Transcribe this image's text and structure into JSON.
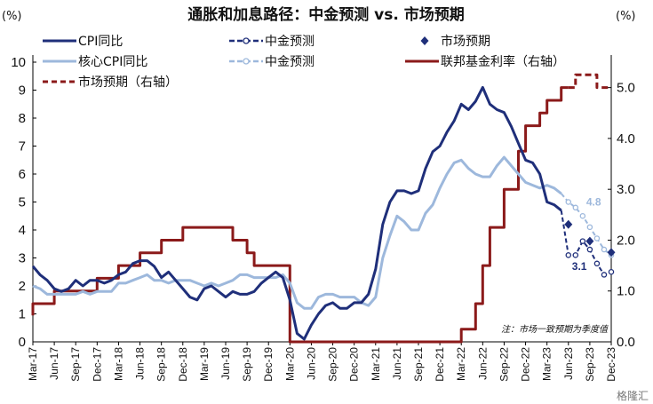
{
  "chart_data": {
    "type": "line",
    "title": "通胀和加息路径：中金预测 vs. 市场预期",
    "ylabel_left": "(%)",
    "ylabel_right": "(%)",
    "ylim_left": [
      0,
      10
    ],
    "ylim_right": [
      0,
      5.5
    ],
    "yticks_left": [
      "0",
      "1",
      "2",
      "3",
      "4",
      "5",
      "6",
      "7",
      "8",
      "9",
      "10"
    ],
    "yticks_right": [
      "0.0",
      "1.0",
      "2.0",
      "3.0",
      "4.0",
      "5.0"
    ],
    "x_start": "Mar-17",
    "x_end": "Dec-23",
    "xticks": [
      "Mar-17",
      "Jun-17",
      "Sep-17",
      "Dec-17",
      "Mar-18",
      "Jun-18",
      "Sep-18",
      "Dec-18",
      "Mar-19",
      "Jun-19",
      "Sep-19",
      "Dec-19",
      "Mar-20",
      "Jun-20",
      "Sep-20",
      "Dec-20",
      "Mar-21",
      "Jun-21",
      "Sep-21",
      "Dec-21",
      "Mar-22",
      "Jun-22",
      "Sep-22",
      "Dec-22",
      "Mar-23",
      "Jun-23",
      "Sep-23",
      "Dec-23"
    ],
    "legend": [
      {
        "label": "CPI同比",
        "color": "#1f2f7a",
        "style": "solid"
      },
      {
        "label": "中金预测",
        "color": "#1f2f7a",
        "style": "dashed-hollow"
      },
      {
        "label": "市场预期",
        "color": "#1f2f7a",
        "style": "diamond"
      },
      {
        "label": "核心CPI同比",
        "color": "#9db8dc",
        "style": "solid"
      },
      {
        "label": "中金预测",
        "color": "#9db8dc",
        "style": "dashed-hollow"
      },
      {
        "label": "联邦基金利率（右轴）",
        "color": "#8b1a1a",
        "style": "step"
      },
      {
        "label": "市场预期（右轴）",
        "color": "#8b1a1a",
        "style": "dashed"
      }
    ],
    "note": "注：市场一致预期为季度值",
    "annotations": [
      {
        "text": "4.8",
        "date": "Aug-23",
        "y": 5.0,
        "color": "#9db8dc"
      },
      {
        "text": "3.1",
        "date": "Jun-23",
        "y": 2.7,
        "color": "#1f2f7a"
      }
    ],
    "series": [
      {
        "name": "CPI同比",
        "color": "#1f2f7a",
        "points": [
          [
            "Mar-17",
            2.7
          ],
          [
            "Apr-17",
            2.4
          ],
          [
            "May-17",
            2.2
          ],
          [
            "Jun-17",
            1.9
          ],
          [
            "Jul-17",
            1.8
          ],
          [
            "Aug-17",
            1.9
          ],
          [
            "Sep-17",
            2.2
          ],
          [
            "Oct-17",
            2.0
          ],
          [
            "Nov-17",
            2.2
          ],
          [
            "Dec-17",
            2.2
          ],
          [
            "Jan-18",
            2.1
          ],
          [
            "Feb-18",
            2.2
          ],
          [
            "Mar-18",
            2.4
          ],
          [
            "Apr-18",
            2.5
          ],
          [
            "May-18",
            2.8
          ],
          [
            "Jun-18",
            2.9
          ],
          [
            "Jul-18",
            2.9
          ],
          [
            "Aug-18",
            2.7
          ],
          [
            "Sep-18",
            2.3
          ],
          [
            "Oct-18",
            2.5
          ],
          [
            "Nov-18",
            2.2
          ],
          [
            "Dec-18",
            1.9
          ],
          [
            "Jan-19",
            1.6
          ],
          [
            "Feb-19",
            1.5
          ],
          [
            "Mar-19",
            1.9
          ],
          [
            "Apr-19",
            2.0
          ],
          [
            "May-19",
            1.8
          ],
          [
            "Jun-19",
            1.6
          ],
          [
            "Jul-19",
            1.8
          ],
          [
            "Aug-19",
            1.7
          ],
          [
            "Sep-19",
            1.7
          ],
          [
            "Oct-19",
            1.8
          ],
          [
            "Nov-19",
            2.1
          ],
          [
            "Dec-19",
            2.3
          ],
          [
            "Jan-20",
            2.5
          ],
          [
            "Feb-20",
            2.3
          ],
          [
            "Mar-20",
            1.5
          ],
          [
            "Apr-20",
            0.3
          ],
          [
            "May-20",
            0.1
          ],
          [
            "Jun-20",
            0.6
          ],
          [
            "Jul-20",
            1.0
          ],
          [
            "Aug-20",
            1.3
          ],
          [
            "Sep-20",
            1.4
          ],
          [
            "Oct-20",
            1.2
          ],
          [
            "Nov-20",
            1.2
          ],
          [
            "Dec-20",
            1.4
          ],
          [
            "Jan-21",
            1.4
          ],
          [
            "Feb-21",
            1.7
          ],
          [
            "Mar-21",
            2.6
          ],
          [
            "Apr-21",
            4.2
          ],
          [
            "May-21",
            5.0
          ],
          [
            "Jun-21",
            5.4
          ],
          [
            "Jul-21",
            5.4
          ],
          [
            "Aug-21",
            5.3
          ],
          [
            "Sep-21",
            5.4
          ],
          [
            "Oct-21",
            6.2
          ],
          [
            "Nov-21",
            6.8
          ],
          [
            "Dec-21",
            7.0
          ],
          [
            "Jan-22",
            7.5
          ],
          [
            "Feb-22",
            7.9
          ],
          [
            "Mar-22",
            8.5
          ],
          [
            "Apr-22",
            8.3
          ],
          [
            "May-22",
            8.6
          ],
          [
            "Jun-22",
            9.1
          ],
          [
            "Jul-22",
            8.5
          ],
          [
            "Aug-22",
            8.3
          ],
          [
            "Sep-22",
            8.2
          ],
          [
            "Oct-22",
            7.7
          ],
          [
            "Nov-22",
            7.1
          ],
          [
            "Dec-22",
            6.5
          ],
          [
            "Jan-23",
            6.4
          ],
          [
            "Feb-23",
            6.0
          ],
          [
            "Mar-23",
            5.0
          ],
          [
            "Apr-23",
            4.9
          ],
          [
            "May-23",
            4.7
          ]
        ]
      },
      {
        "name": "中金预测",
        "color": "#1f2f7a",
        "points": [
          [
            "May-23",
            4.7
          ],
          [
            "Jun-23",
            3.1
          ],
          [
            "Jul-23",
            3.1
          ],
          [
            "Aug-23",
            3.6
          ],
          [
            "Sep-23",
            3.3
          ],
          [
            "Oct-23",
            2.8
          ],
          [
            "Nov-23",
            2.4
          ],
          [
            "Dec-23",
            2.5
          ]
        ]
      },
      {
        "name": "市场预期",
        "color": "#1f2f7a",
        "points": [
          [
            "Jun-23",
            4.2
          ],
          [
            "Sep-23",
            3.6
          ],
          [
            "Dec-23",
            3.2
          ]
        ]
      },
      {
        "name": "核心CPI同比",
        "color": "#9db8dc",
        "points": [
          [
            "Mar-17",
            2.0
          ],
          [
            "Apr-17",
            1.9
          ],
          [
            "May-17",
            1.7
          ],
          [
            "Jun-17",
            1.7
          ],
          [
            "Jul-17",
            1.7
          ],
          [
            "Aug-17",
            1.7
          ],
          [
            "Sep-17",
            1.7
          ],
          [
            "Oct-17",
            1.8
          ],
          [
            "Nov-17",
            1.7
          ],
          [
            "Dec-17",
            1.8
          ],
          [
            "Jan-18",
            1.8
          ],
          [
            "Feb-18",
            1.8
          ],
          [
            "Mar-18",
            2.1
          ],
          [
            "Apr-18",
            2.1
          ],
          [
            "May-18",
            2.2
          ],
          [
            "Jun-18",
            2.3
          ],
          [
            "Jul-18",
            2.4
          ],
          [
            "Aug-18",
            2.2
          ],
          [
            "Sep-18",
            2.2
          ],
          [
            "Oct-18",
            2.1
          ],
          [
            "Nov-18",
            2.2
          ],
          [
            "Dec-18",
            2.2
          ],
          [
            "Jan-19",
            2.2
          ],
          [
            "Feb-19",
            2.1
          ],
          [
            "Mar-19",
            2.0
          ],
          [
            "Apr-19",
            2.1
          ],
          [
            "May-19",
            2.0
          ],
          [
            "Jun-19",
            2.1
          ],
          [
            "Jul-19",
            2.2
          ],
          [
            "Aug-19",
            2.4
          ],
          [
            "Sep-19",
            2.4
          ],
          [
            "Oct-19",
            2.3
          ],
          [
            "Nov-19",
            2.3
          ],
          [
            "Dec-19",
            2.3
          ],
          [
            "Jan-20",
            2.3
          ],
          [
            "Feb-20",
            2.4
          ],
          [
            "Mar-20",
            2.1
          ],
          [
            "Apr-20",
            1.4
          ],
          [
            "May-20",
            1.2
          ],
          [
            "Jun-20",
            1.2
          ],
          [
            "Jul-20",
            1.6
          ],
          [
            "Aug-20",
            1.7
          ],
          [
            "Sep-20",
            1.7
          ],
          [
            "Oct-20",
            1.6
          ],
          [
            "Nov-20",
            1.6
          ],
          [
            "Dec-20",
            1.6
          ],
          [
            "Jan-21",
            1.4
          ],
          [
            "Feb-21",
            1.3
          ],
          [
            "Mar-21",
            1.6
          ],
          [
            "Apr-21",
            3.0
          ],
          [
            "May-21",
            3.8
          ],
          [
            "Jun-21",
            4.5
          ],
          [
            "Jul-21",
            4.3
          ],
          [
            "Aug-21",
            4.0
          ],
          [
            "Sep-21",
            4.0
          ],
          [
            "Oct-21",
            4.6
          ],
          [
            "Nov-21",
            4.9
          ],
          [
            "Dec-21",
            5.5
          ],
          [
            "Jan-22",
            6.0
          ],
          [
            "Feb-22",
            6.4
          ],
          [
            "Mar-22",
            6.5
          ],
          [
            "Apr-22",
            6.2
          ],
          [
            "May-22",
            6.0
          ],
          [
            "Jun-22",
            5.9
          ],
          [
            "Jul-22",
            5.9
          ],
          [
            "Aug-22",
            6.3
          ],
          [
            "Sep-22",
            6.6
          ],
          [
            "Oct-22",
            6.3
          ],
          [
            "Nov-22",
            6.0
          ],
          [
            "Dec-22",
            5.7
          ],
          [
            "Jan-23",
            5.6
          ],
          [
            "Feb-23",
            5.5
          ],
          [
            "Mar-23",
            5.6
          ],
          [
            "Apr-23",
            5.5
          ],
          [
            "May-23",
            5.3
          ]
        ]
      },
      {
        "name": "中金预测",
        "color": "#9db8dc",
        "points": [
          [
            "May-23",
            5.3
          ],
          [
            "Jun-23",
            5.0
          ],
          [
            "Jul-23",
            4.8
          ],
          [
            "Aug-23",
            4.5
          ],
          [
            "Sep-23",
            4.1
          ],
          [
            "Oct-23",
            3.7
          ],
          [
            "Nov-23",
            3.3
          ],
          [
            "Dec-23",
            3.1
          ]
        ]
      },
      {
        "name": "联邦基金利率（右轴）",
        "color": "#8b1a1a",
        "step": true,
        "points": [
          [
            "Mar-17",
            0.52
          ],
          [
            "Mar-17",
            0.75
          ],
          [
            "Jun-17",
            0.75
          ],
          [
            "Jun-17",
            1.0
          ],
          [
            "Dec-17",
            1.0
          ],
          [
            "Dec-17",
            1.25
          ],
          [
            "Mar-18",
            1.25
          ],
          [
            "Mar-18",
            1.5
          ],
          [
            "Jun-18",
            1.5
          ],
          [
            "Jun-18",
            1.75
          ],
          [
            "Sep-18",
            1.75
          ],
          [
            "Sep-18",
            2.0
          ],
          [
            "Dec-18",
            2.0
          ],
          [
            "Dec-18",
            2.25
          ],
          [
            "Jul-19",
            2.25
          ],
          [
            "Jul-19",
            2.0
          ],
          [
            "Sep-19",
            2.0
          ],
          [
            "Sep-19",
            1.75
          ],
          [
            "Oct-19",
            1.75
          ],
          [
            "Oct-19",
            1.5
          ],
          [
            "Mar-20",
            1.5
          ],
          [
            "Mar-20",
            0.0
          ],
          [
            "Mar-22",
            0.0
          ],
          [
            "Mar-22",
            0.25
          ],
          [
            "May-22",
            0.25
          ],
          [
            "May-22",
            0.75
          ],
          [
            "Jun-22",
            0.75
          ],
          [
            "Jun-22",
            1.5
          ],
          [
            "Jul-22",
            1.5
          ],
          [
            "Jul-22",
            2.25
          ],
          [
            "Sep-22",
            2.25
          ],
          [
            "Sep-22",
            3.0
          ],
          [
            "Nov-22",
            3.0
          ],
          [
            "Nov-22",
            3.75
          ],
          [
            "Dec-22",
            3.75
          ],
          [
            "Dec-22",
            4.25
          ],
          [
            "Feb-23",
            4.25
          ],
          [
            "Feb-23",
            4.5
          ],
          [
            "Mar-23",
            4.5
          ],
          [
            "Mar-23",
            4.75
          ],
          [
            "May-23",
            4.75
          ],
          [
            "May-23",
            5.0
          ],
          [
            "Jun-23",
            5.0
          ]
        ]
      },
      {
        "name": "市场预期（右轴）",
        "color": "#8b1a1a",
        "dashed": true,
        "step": true,
        "points": [
          [
            "Jun-23",
            5.0
          ],
          [
            "Jul-23",
            5.0
          ],
          [
            "Jul-23",
            5.25
          ],
          [
            "Oct-23",
            5.25
          ],
          [
            "Oct-23",
            5.0
          ],
          [
            "Dec-23",
            5.0
          ]
        ]
      }
    ]
  },
  "watermark": "格隆汇"
}
